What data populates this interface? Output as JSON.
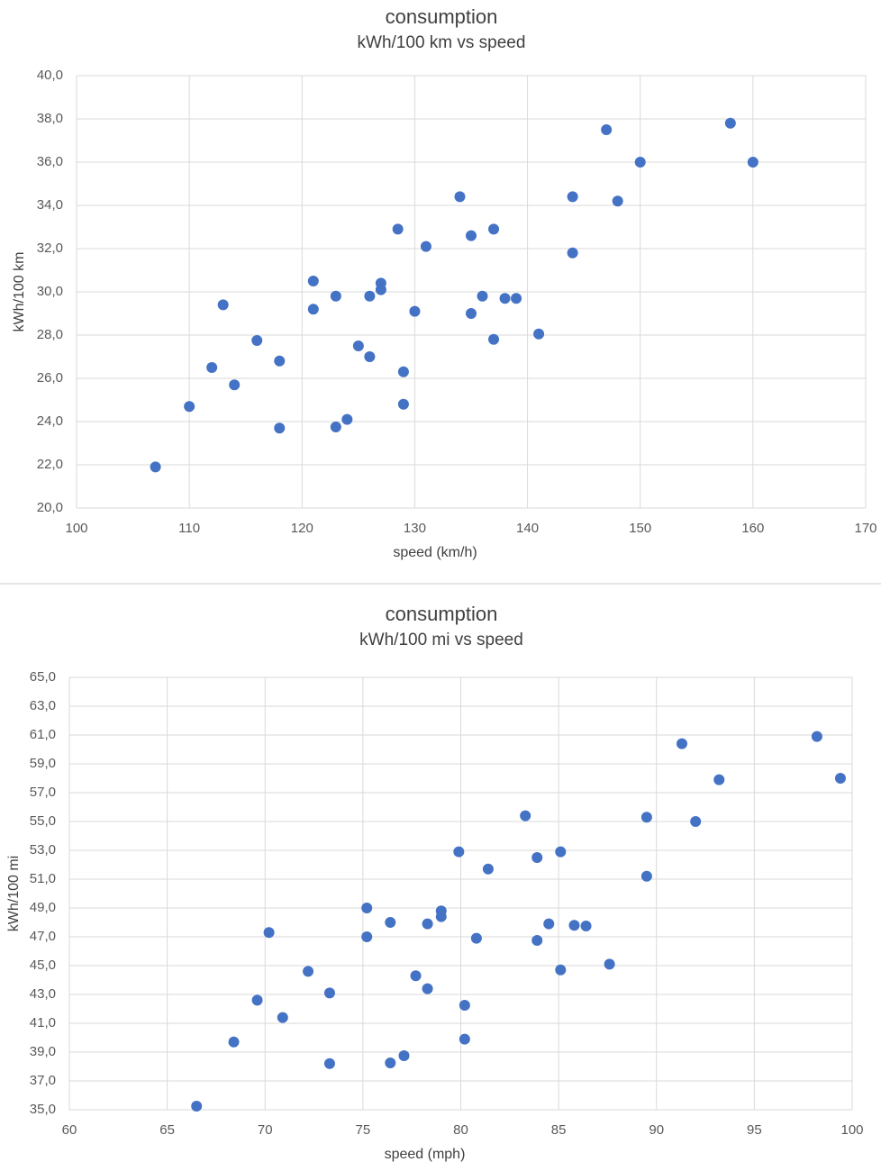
{
  "chart_data": [
    {
      "type": "scatter",
      "title": "consumption",
      "subtitle": "kWh/100 km vs speed",
      "x_label": "speed (km/h)",
      "y_label": "kWh/100 km",
      "color": "#4472c4",
      "grid": true,
      "xlim": [
        100,
        170
      ],
      "xticks": [
        100,
        110,
        120,
        130,
        140,
        150,
        160,
        170
      ],
      "ylim": [
        20,
        40
      ],
      "yticks": [
        {
          "value": 20,
          "label": "20,0"
        },
        {
          "value": 22,
          "label": "22,0"
        },
        {
          "value": 24,
          "label": "24,0"
        },
        {
          "value": 26,
          "label": "26,0"
        },
        {
          "value": 28,
          "label": "28,0"
        },
        {
          "value": 30,
          "label": "30,0"
        },
        {
          "value": 32,
          "label": "32,0"
        },
        {
          "value": 34,
          "label": "34,0"
        },
        {
          "value": 36,
          "label": "36,0"
        },
        {
          "value": 38,
          "label": "38,0"
        },
        {
          "value": 40,
          "label": "40,0"
        }
      ],
      "x": [
        107,
        110,
        112,
        113,
        114,
        116,
        118,
        118,
        121,
        121,
        123,
        123,
        124,
        125,
        126,
        126,
        127,
        127,
        128.5,
        129,
        129,
        130,
        131,
        134,
        135,
        135,
        136,
        137,
        137,
        138,
        139,
        141,
        144,
        144,
        147,
        148,
        150,
        158,
        160
      ],
      "values": [
        21.9,
        24.7,
        26.5,
        29.4,
        25.7,
        27.75,
        26.8,
        23.7,
        30.5,
        29.2,
        29.8,
        23.75,
        24.1,
        27.5,
        29.8,
        27.0,
        30.4,
        30.1,
        32.9,
        26.3,
        24.8,
        29.1,
        32.1,
        34.4,
        32.6,
        29.0,
        29.8,
        32.9,
        27.8,
        29.7,
        29.7,
        28.05,
        34.4,
        31.8,
        37.5,
        34.2,
        36.0,
        37.8,
        36.0
      ]
    },
    {
      "type": "scatter",
      "title": "consumption",
      "subtitle": "kWh/100 mi vs speed",
      "x_label": "speed (mph)",
      "y_label": "kWh/100 mi",
      "color": "#4472c4",
      "grid": true,
      "xlim": [
        60,
        100
      ],
      "xticks": [
        60,
        65,
        70,
        75,
        80,
        85,
        90,
        95,
        100
      ],
      "ylim": [
        35,
        65
      ],
      "yticks": [
        {
          "value": 35,
          "label": "35,0"
        },
        {
          "value": 37,
          "label": "37,0"
        },
        {
          "value": 39,
          "label": "39,0"
        },
        {
          "value": 41,
          "label": "41,0"
        },
        {
          "value": 43,
          "label": "43,0"
        },
        {
          "value": 45,
          "label": "45,0"
        },
        {
          "value": 47,
          "label": "47,0"
        },
        {
          "value": 49,
          "label": "49,0"
        },
        {
          "value": 51,
          "label": "51,0"
        },
        {
          "value": 53,
          "label": "53,0"
        },
        {
          "value": 55,
          "label": "55,0"
        },
        {
          "value": 57,
          "label": "57,0"
        },
        {
          "value": 59,
          "label": "59,0"
        },
        {
          "value": 61,
          "label": "61,0"
        },
        {
          "value": 63,
          "label": "63,0"
        },
        {
          "value": 65,
          "label": "65,0"
        }
      ],
      "x": [
        66.5,
        68.4,
        69.6,
        70.2,
        70.9,
        72.2,
        73.3,
        73.3,
        75.2,
        75.2,
        76.4,
        76.4,
        77.1,
        77.7,
        78.3,
        78.3,
        79.0,
        79.0,
        79.9,
        80.2,
        80.2,
        80.8,
        81.4,
        83.3,
        83.9,
        83.9,
        84.5,
        85.1,
        85.1,
        85.8,
        86.4,
        87.6,
        89.5,
        89.5,
        91.3,
        92.0,
        93.2,
        98.2,
        99.4
      ],
      "values": [
        35.25,
        39.7,
        42.6,
        47.3,
        41.4,
        44.6,
        43.1,
        38.2,
        49.0,
        47.0,
        48.0,
        38.25,
        38.75,
        44.3,
        47.9,
        43.4,
        48.8,
        48.4,
        52.9,
        42.25,
        39.9,
        46.9,
        51.7,
        55.4,
        52.5,
        46.75,
        47.9,
        52.9,
        44.7,
        47.8,
        47.75,
        45.1,
        55.3,
        51.2,
        60.4,
        55.0,
        57.9,
        60.9,
        58.0
      ]
    }
  ]
}
